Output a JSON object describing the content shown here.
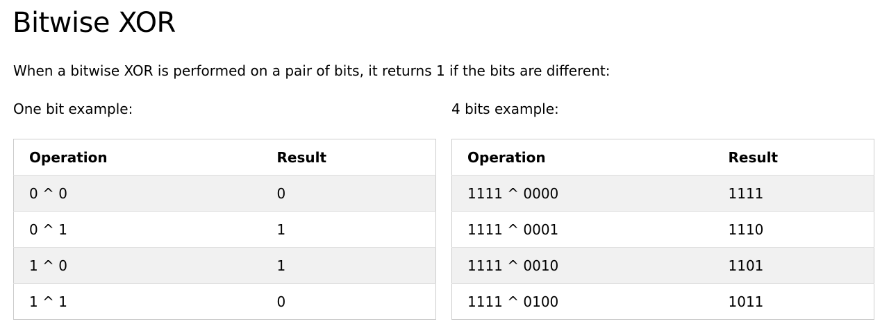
{
  "title": "Bitwise XOR",
  "intro": "When a bitwise XOR is performed on a pair of bits, it returns 1 if the bits are different:",
  "one_bit": {
    "label": "One bit example:",
    "headers": [
      "Operation",
      "Result"
    ],
    "rows": [
      [
        "0 ^ 0",
        "0"
      ],
      [
        "0 ^ 1",
        "1"
      ],
      [
        "1 ^ 0",
        "1"
      ],
      [
        "1 ^ 1",
        "0"
      ]
    ]
  },
  "four_bits": {
    "label": "4 bits example:",
    "headers": [
      "Operation",
      "Result"
    ],
    "rows": [
      [
        "1111 ^ 0000",
        "1111"
      ],
      [
        "1111 ^ 0001",
        "1110"
      ],
      [
        "1111 ^ 0010",
        "1101"
      ],
      [
        "1111 ^ 0100",
        "1011"
      ]
    ]
  }
}
